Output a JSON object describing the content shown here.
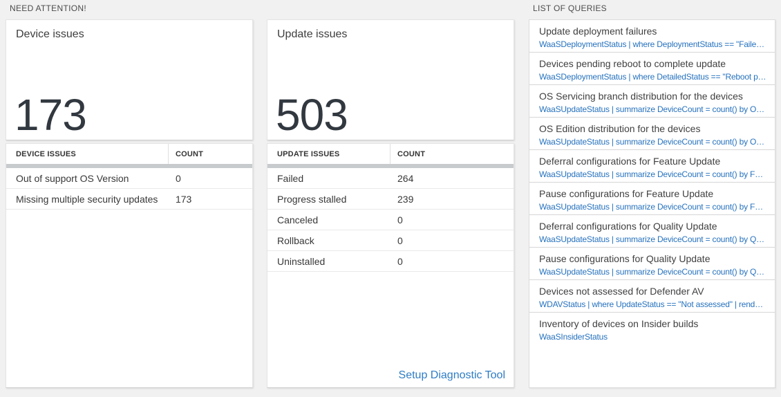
{
  "page": {
    "bg_color": "#f1f1f1",
    "accent_blue": "#2672be",
    "link_blue": "#2e7cc4",
    "number_color": "#32383f",
    "thick_bar_color": "#c8cbce"
  },
  "need_attention": {
    "section_label": "NEED ATTENTION!",
    "cards": [
      {
        "title": "Device issues",
        "big_number": "173",
        "table": {
          "headers": [
            "DEVICE ISSUES",
            "COUNT"
          ],
          "rows": [
            {
              "label": "Out of support OS Version",
              "count": "0"
            },
            {
              "label": "Missing multiple security updates",
              "count": "173"
            }
          ]
        }
      },
      {
        "title": "Update issues",
        "big_number": "503",
        "table": {
          "headers": [
            "UPDATE ISSUES",
            "COUNT"
          ],
          "rows": [
            {
              "label": "Failed",
              "count": "264"
            },
            {
              "label": "Progress stalled",
              "count": "239"
            },
            {
              "label": "Canceled",
              "count": "0"
            },
            {
              "label": "Rollback",
              "count": "0"
            },
            {
              "label": "Uninstalled",
              "count": "0"
            }
          ]
        },
        "footer_link": "Setup Diagnostic Tool"
      }
    ]
  },
  "queries": {
    "section_label": "LIST OF QUERIES",
    "items": [
      {
        "title": "Update deployment failures",
        "query": "WaaSDeploymentStatus | where DeploymentStatus == \"Failed\" |..."
      },
      {
        "title": "Devices pending reboot to complete update",
        "query": "WaaSDeploymentStatus | where DetailedStatus == \"Reboot pend..."
      },
      {
        "title": "OS Servicing branch distribution for the devices",
        "query": "WaaSUpdateStatus | summarize DeviceCount = count() by OSSer..."
      },
      {
        "title": "OS Edition distribution for the devices",
        "query": "WaaSUpdateStatus | summarize DeviceCount = count() by OSEdit..."
      },
      {
        "title": "Deferral configurations for Feature Update",
        "query": "WaaSUpdateStatus | summarize DeviceCount = count() by Featur..."
      },
      {
        "title": "Pause configurations for Feature Update",
        "query": "WaaSUpdateStatus | summarize DeviceCount = count() by Featur..."
      },
      {
        "title": "Deferral configurations for Quality Update",
        "query": "WaaSUpdateStatus | summarize DeviceCount = count() by Qualit..."
      },
      {
        "title": "Pause configurations for Quality Update",
        "query": "WaaSUpdateStatus | summarize DeviceCount = count() by Qualit..."
      },
      {
        "title": "Devices not assessed for Defender AV",
        "query": "WDAVStatus | where UpdateStatus == \"Not assessed\" | render ta..."
      },
      {
        "title": "Inventory of devices on Insider builds",
        "query": "WaaSInsiderStatus"
      }
    ]
  }
}
